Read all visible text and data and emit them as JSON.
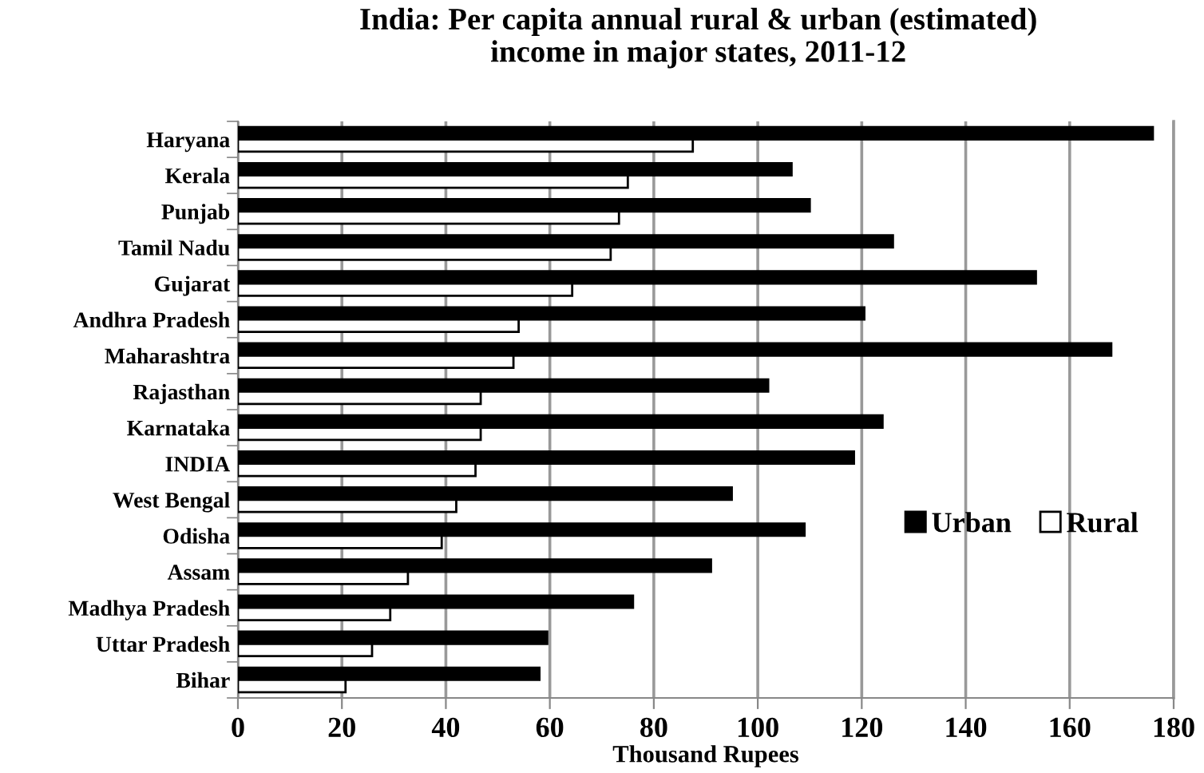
{
  "chart_data": {
    "type": "bar",
    "orientation": "horizontal",
    "title": "India: Per capita annual rural & urban (estimated)\nincome in major states, 2011-12",
    "xlabel": "Thousand Rupees",
    "categories": [
      "Haryana",
      "Kerala",
      "Punjab",
      "Tamil Nadu",
      "Gujarat",
      "Andhra Pradesh",
      "Maharashtra",
      "Rajasthan",
      "Karnataka",
      "INDIA",
      "West Bengal",
      "Odisha",
      "Assam",
      "Madhya Pradesh",
      "Uttar Pradesh",
      "Bihar"
    ],
    "series": [
      {
        "name": "Urban",
        "color": "#000000",
        "values": [
          176,
          106.5,
          110,
          126,
          153.5,
          120.5,
          168,
          102,
          124,
          118.5,
          95,
          109,
          91,
          76,
          59.5,
          58
        ]
      },
      {
        "name": "Rural",
        "color": "#ffffff",
        "values": [
          87.5,
          75,
          73.3,
          71.7,
          64.3,
          54,
          53,
          46.7,
          46.7,
          45.7,
          42,
          39.2,
          32.7,
          29.3,
          25.8,
          20.7
        ]
      }
    ],
    "xlim": [
      0,
      180
    ],
    "xticks": [
      0,
      20,
      40,
      60,
      80,
      100,
      120,
      140,
      160,
      180
    ],
    "grid": "x",
    "legend": "right"
  }
}
